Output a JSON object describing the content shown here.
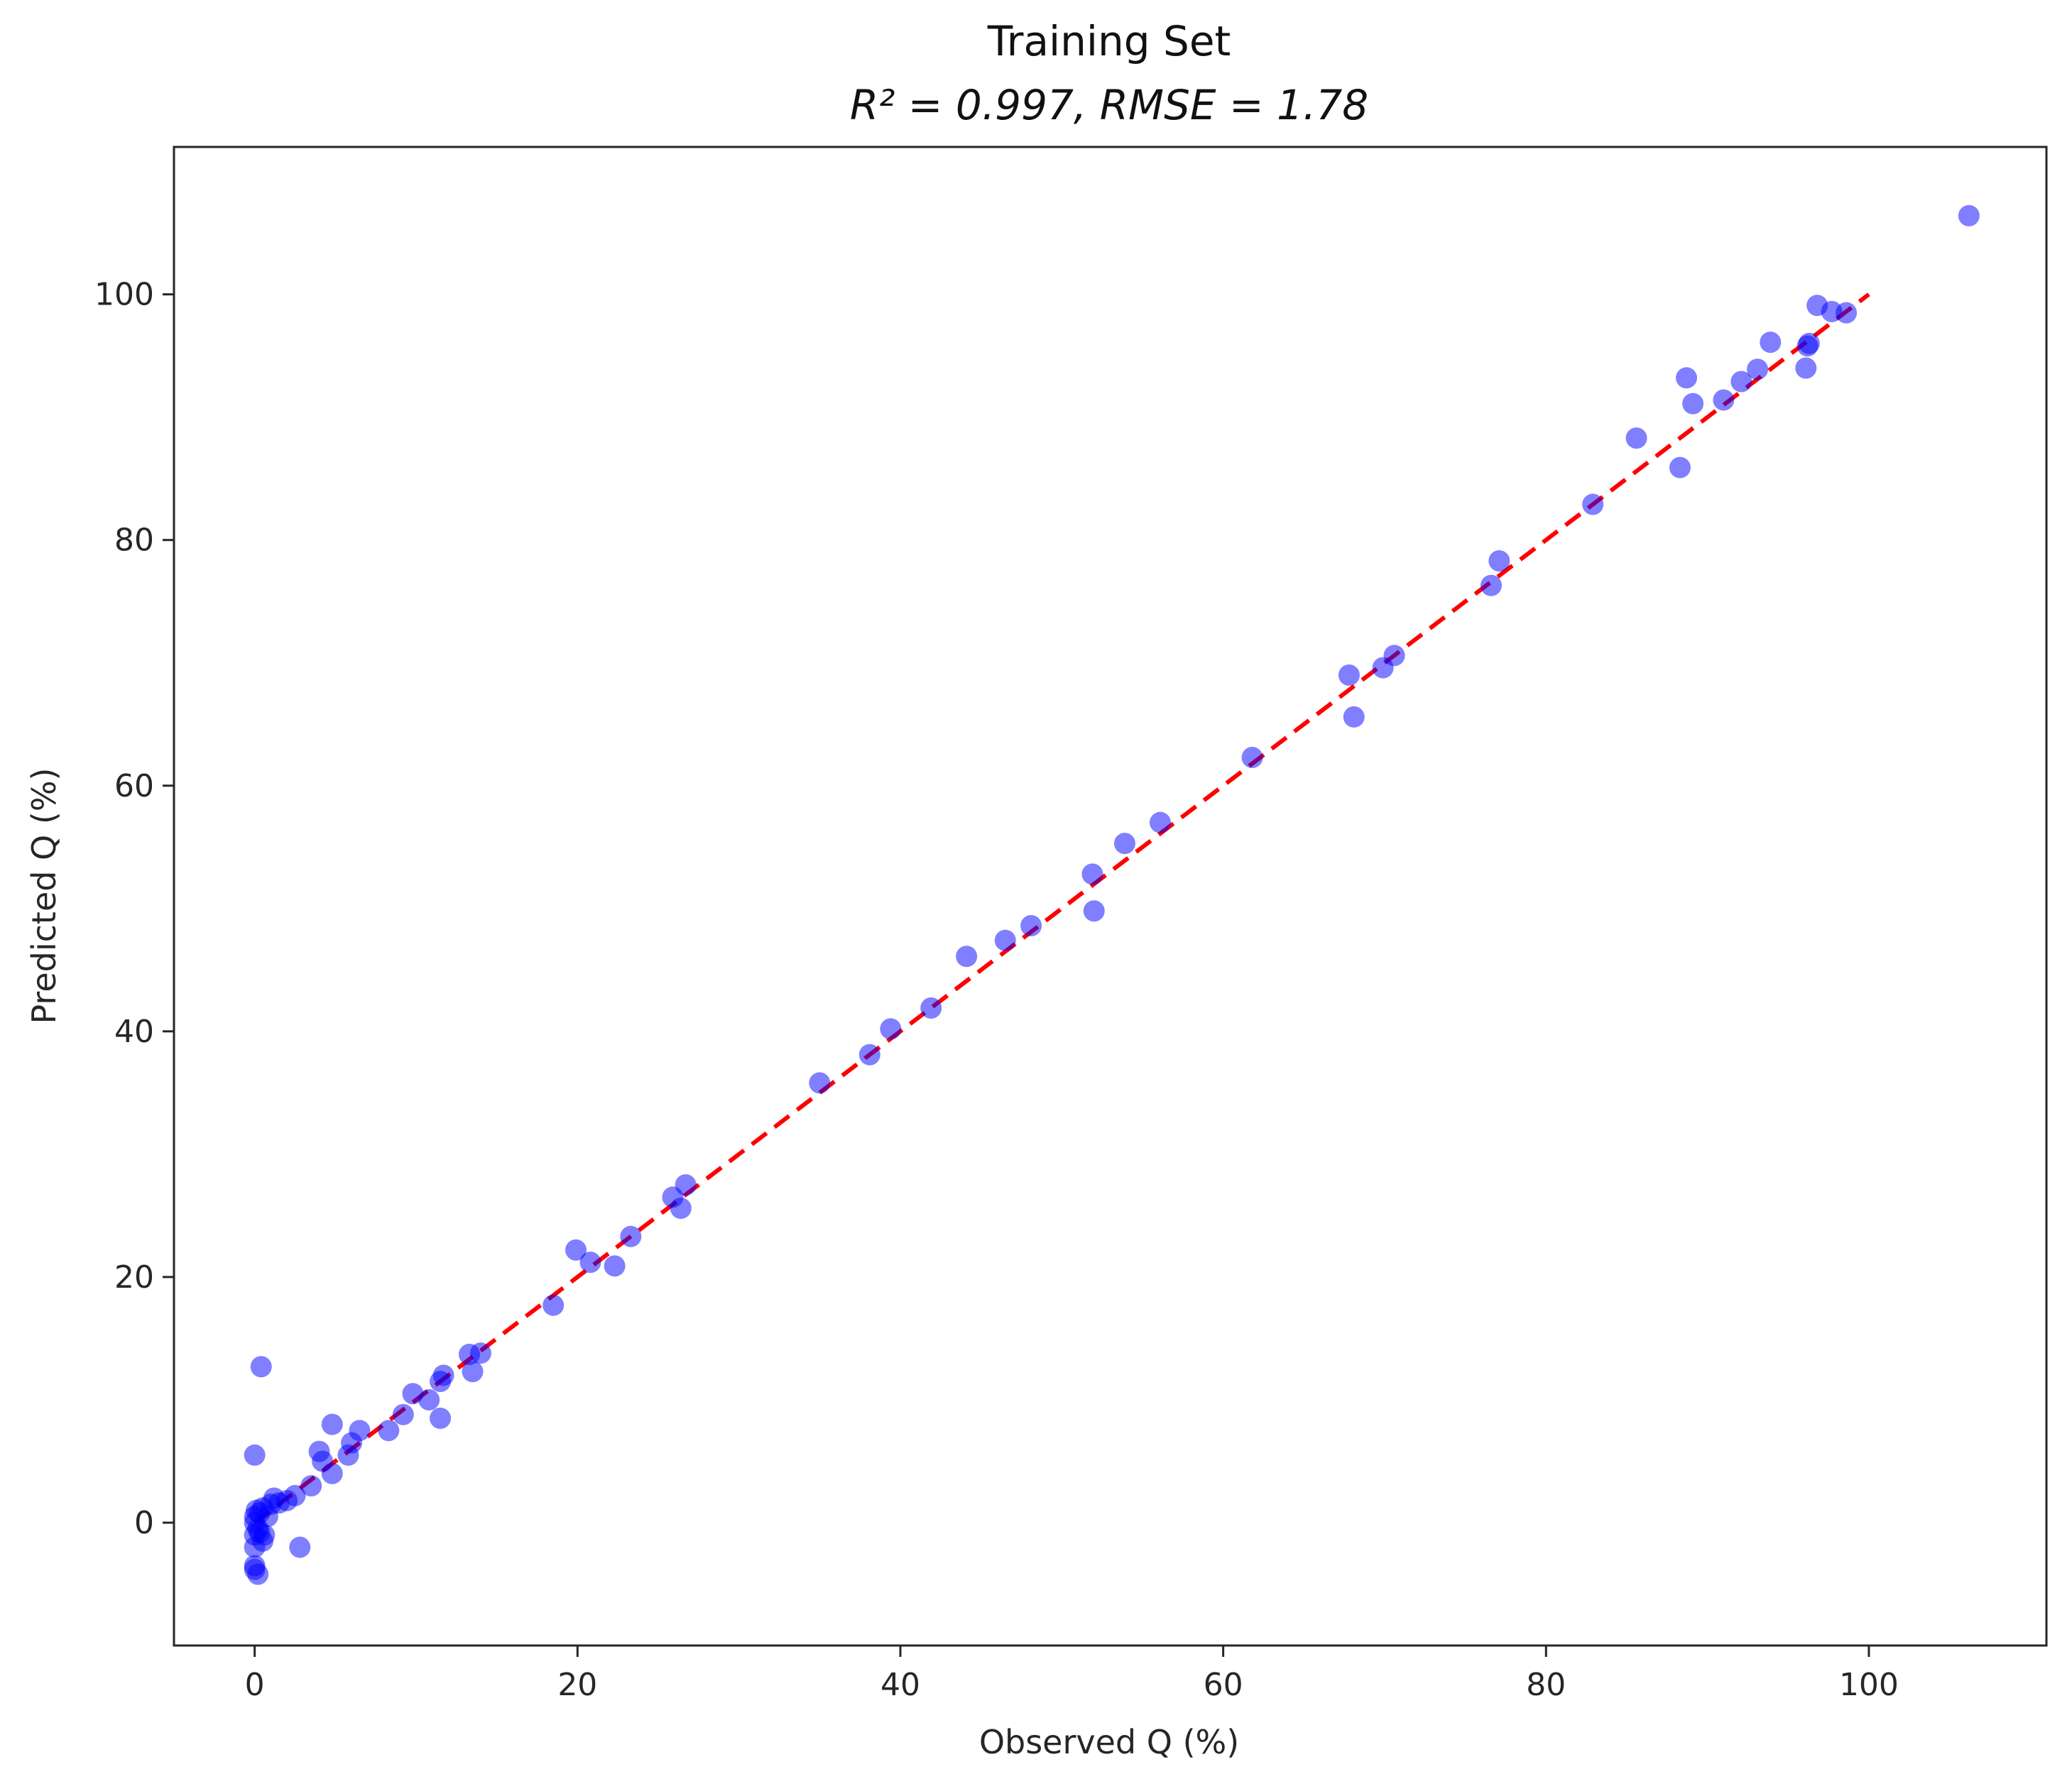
{
  "chart_data": {
    "type": "scatter",
    "title": "Training Set",
    "subtitle": "R² = 0.997, RMSE = 1.78",
    "xlabel": "Observed Q (%)",
    "ylabel": "Predicted Q (%)",
    "xlim": [
      -5,
      111
    ],
    "ylim": [
      -10,
      112
    ],
    "xticks": [
      0,
      20,
      40,
      60,
      80,
      100
    ],
    "yticks": [
      0,
      20,
      40,
      60,
      80,
      100
    ],
    "grid": false,
    "reference_line": {
      "from": [
        0,
        0
      ],
      "to": [
        100,
        100
      ],
      "color": "#ff0000",
      "style": "dashed"
    },
    "point_color": "#0000ff",
    "x": [
      0,
      0,
      0,
      0,
      0,
      0.1,
      0.2,
      0.3,
      0.5,
      0.6,
      0.8,
      1.0,
      1.2,
      1.5,
      2.0,
      2.5,
      0,
      0.4,
      0.2,
      0,
      0.5,
      0.3,
      2.8,
      3.5,
      4.0,
      4.2,
      4.8,
      4.8,
      5.8,
      6.0,
      6.5,
      8.3,
      9.2,
      9.8,
      10.8,
      11.5,
      11.7,
      11.5,
      13.3,
      13.5,
      14.0,
      18.5,
      19.9,
      20.8,
      22.3,
      23.3,
      25.9,
      26.4,
      26.7,
      35.0,
      38.1,
      39.4,
      41.9,
      44.1,
      46.5,
      48.1,
      51.9,
      52.0,
      53.9,
      56.1,
      61.8,
      67.8,
      68.1,
      69.9,
      70.6,
      76.6,
      77.1,
      82.9,
      85.6,
      88.3,
      88.7,
      89.1,
      91.0,
      92.1,
      93.1,
      93.9,
      96.1,
      96.2,
      96.3,
      96.8,
      97.7,
      98.6,
      106.2
    ],
    "y": [
      -1.0,
      0,
      0.5,
      -2.0,
      -3.5,
      1.0,
      -0.5,
      0.8,
      1.2,
      -1.0,
      0.5,
      1.5,
      2.0,
      1.6,
      1.8,
      2.2,
      5.5,
      12.7,
      -4.2,
      -3.8,
      -1.5,
      -0.8,
      -2.0,
      3.0,
      5.8,
      5.0,
      8.0,
      4.0,
      5.5,
      6.5,
      7.5,
      7.5,
      8.8,
      10.5,
      10.0,
      11.5,
      12.0,
      8.5,
      13.7,
      12.3,
      13.8,
      17.7,
      22.2,
      21.2,
      20.9,
      23.3,
      26.5,
      25.6,
      27.5,
      35.8,
      38.1,
      40.2,
      41.9,
      46.1,
      47.4,
      48.6,
      52.8,
      49.8,
      55.3,
      57.0,
      62.3,
      69.0,
      65.6,
      69.6,
      70.6,
      76.3,
      78.3,
      82.9,
      88.3,
      85.9,
      93.2,
      91.1,
      91.4,
      92.9,
      93.9,
      96.1,
      94.0,
      95.8,
      96.0,
      99.1,
      98.6,
      98.5,
      106.4
    ]
  }
}
